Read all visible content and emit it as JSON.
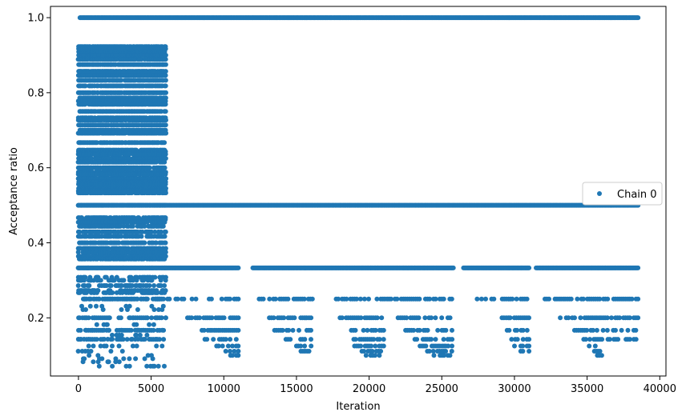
{
  "chart_data": {
    "type": "scatter",
    "title": "",
    "xlabel": "Iteration",
    "ylabel": "Acceptance ratio",
    "xlim": [
      -1925,
      40425
    ],
    "ylim": [
      0.045,
      1.03
    ],
    "xticks": [
      0,
      5000,
      10000,
      15000,
      20000,
      25000,
      30000,
      35000,
      40000
    ],
    "xtick_labels": [
      "0",
      "5000",
      "10000",
      "15000",
      "20000",
      "25000",
      "30000",
      "35000",
      "40000"
    ],
    "yticks": [
      0.2,
      0.4,
      0.6,
      0.8,
      1.0
    ],
    "ytick_labels": [
      "0.2",
      "0.4",
      "0.6",
      "0.8",
      "1.0"
    ],
    "grid": false,
    "legend_position": "center-right",
    "marker_color": "#1f77b4",
    "series": [
      {
        "name": "Chain 0",
        "description_of_pattern": "dense acceptance ratios",
        "bands": [
          {
            "y": 1.0,
            "x_ranges": [
              [
                100,
                38500
              ]
            ]
          },
          {
            "y": 0.5,
            "x_ranges": [
              [
                0,
                38500
              ]
            ]
          },
          {
            "y": 0.333,
            "x_ranges": [
              [
                0,
                11000
              ],
              [
                12000,
                25800
              ],
              [
                26500,
                31000
              ],
              [
                31500,
                38500
              ]
            ]
          },
          {
            "y": 0.25,
            "x_ranges": [
              [
                0,
                8500
              ],
              [
                9000,
                11000
              ],
              [
                12300,
                16100
              ],
              [
                17600,
                25700
              ],
              [
                27300,
                31000
              ],
              [
                32100,
                38500
              ]
            ]
          },
          {
            "y": 0.2,
            "x_ranges": [
              [
                0,
                6000
              ],
              [
                7500,
                11000
              ],
              [
                13000,
                16000
              ],
              [
                18000,
                21000
              ],
              [
                22000,
                25700
              ],
              [
                29000,
                31000
              ],
              [
                33000,
                38500
              ]
            ]
          },
          {
            "y": 0.1667,
            "x_ranges": [
              [
                0,
                6000
              ],
              [
                8500,
                11000
              ],
              [
                13500,
                16000
              ],
              [
                18500,
                21000
              ],
              [
                22500,
                25700
              ],
              [
                29500,
                31000
              ],
              [
                34000,
                38500
              ]
            ]
          },
          {
            "y": 0.1429,
            "x_ranges": [
              [
                0,
                6000
              ],
              [
                8700,
                11000
              ],
              [
                14000,
                16000
              ],
              [
                18800,
                21000
              ],
              [
                23000,
                25700
              ],
              [
                29800,
                31000
              ],
              [
                34500,
                38500
              ]
            ]
          },
          {
            "y": 0.125,
            "x_ranges": [
              [
                9500,
                11000
              ],
              [
                15000,
                16000
              ],
              [
                19000,
                21000
              ],
              [
                23500,
                25700
              ],
              [
                30000,
                31000
              ],
              [
                35000,
                36000
              ]
            ]
          },
          {
            "y": 0.1111,
            "x_ranges": [
              [
                10000,
                11000
              ],
              [
                15300,
                16000
              ],
              [
                19500,
                20800
              ],
              [
                24000,
                25700
              ],
              [
                30300,
                31000
              ],
              [
                35500,
                36000
              ]
            ]
          },
          {
            "y": 0.1,
            "x_ranges": [
              [
                10200,
                11000
              ],
              [
                19800,
                20700
              ],
              [
                24200,
                25700
              ],
              [
                35700,
                36000
              ]
            ]
          }
        ],
        "early_phase": {
          "x_range": [
            0,
            6000
          ],
          "y_levels": [
            0.923,
            0.917,
            0.909,
            0.9,
            0.889,
            0.875,
            0.857,
            0.846,
            0.833,
            0.818,
            0.8,
            0.786,
            0.778,
            0.769,
            0.75,
            0.733,
            0.727,
            0.714,
            0.7,
            0.692,
            0.667,
            0.647,
            0.643,
            0.636,
            0.625,
            0.615,
            0.6,
            0.588,
            0.583,
            0.571,
            0.562,
            0.556,
            0.545,
            0.538,
            0.533,
            0.5,
            0.467,
            0.462,
            0.455,
            0.444,
            0.429,
            0.417,
            0.4,
            0.385,
            0.375,
            0.364,
            0.357,
            0.333,
            0.308,
            0.3,
            0.286,
            0.273,
            0.267,
            0.25,
            0.231,
            0.222,
            0.2,
            0.182,
            0.167,
            0.154,
            0.143,
            0.125,
            0.111,
            0.1,
            0.091,
            0.083,
            0.071
          ]
        }
      }
    ]
  }
}
